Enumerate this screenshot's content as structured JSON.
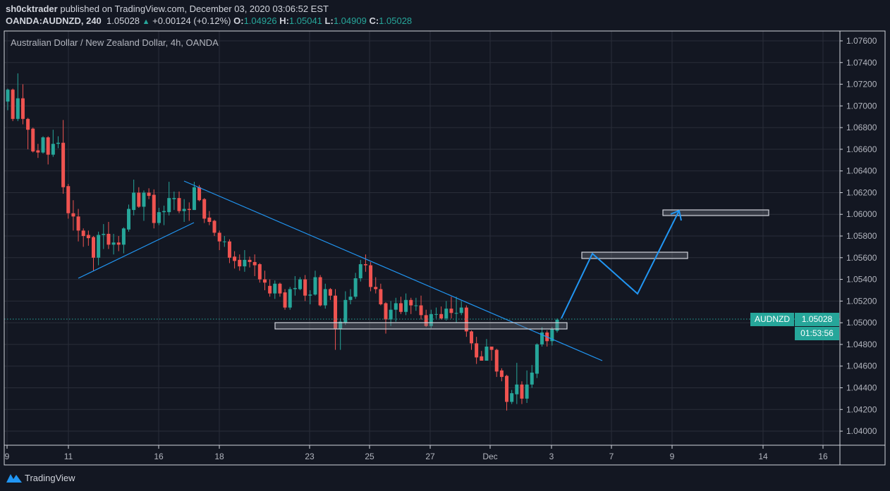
{
  "header": {
    "author": "sh0cktrader",
    "published_text": "published on TradingView.com, December 03, 2020 03:06:52 EST",
    "symbol": "OANDA:AUDNZD, 240",
    "last_price": "1.05028",
    "change": "+0.00124 (+0.12%)",
    "o_label": "O:",
    "o_value": "1.04926",
    "h_label": "H:",
    "h_value": "1.05041",
    "l_label": "L:",
    "l_value": "1.04909",
    "c_label": "C:",
    "c_value": "1.05028",
    "change_direction_icon": "triangle-up-icon"
  },
  "chart_title": "Australian Dollar / New Zealand Dollar, 4h, OANDA",
  "price_label": {
    "symbol": "AUDNZD",
    "price": "1.05028",
    "countdown": "01:53:56"
  },
  "footer": {
    "brand": "TradingView"
  },
  "colors": {
    "background": "#131722",
    "bull": "#26a69a",
    "bear": "#ef5350",
    "grid": "#2a2e39",
    "drawing": "#2196f3",
    "axis_text": "#b2b5be"
  },
  "chart_data": {
    "type": "candlestick",
    "interval": "4h",
    "ylim": [
      1.039,
      1.0775
    ],
    "grid": true,
    "y_ticks": [
      "1.07600",
      "1.07400",
      "1.07200",
      "1.07000",
      "1.06800",
      "1.06600",
      "1.06400",
      "1.06200",
      "1.06000",
      "1.05800",
      "1.05600",
      "1.05400",
      "1.05200",
      "1.05000",
      "1.04800",
      "1.04600",
      "1.04400",
      "1.04200",
      "1.04000"
    ],
    "x_ticks": [
      "9",
      "11",
      "16",
      "18",
      "23",
      "25",
      "27",
      "Dec",
      "3",
      "7",
      "9",
      "14",
      "16"
    ],
    "ohlc": [
      [
        1.0704,
        1.0716,
        1.0696,
        1.0715
      ],
      [
        1.0715,
        1.0716,
        1.0686,
        1.0688
      ],
      [
        1.0688,
        1.073,
        1.0686,
        1.0707
      ],
      [
        1.0707,
        1.072,
        1.0683,
        1.0688
      ],
      [
        1.0688,
        1.0689,
        1.066,
        1.0678
      ],
      [
        1.0679,
        1.068,
        1.0657,
        1.0658
      ],
      [
        1.0659,
        1.0665,
        1.0652,
        1.0657
      ],
      [
        1.0657,
        1.0672,
        1.0656,
        1.0671
      ],
      [
        1.0671,
        1.0672,
        1.0646,
        1.0655
      ],
      [
        1.0655,
        1.0678,
        1.0653,
        1.0665
      ],
      [
        1.0665,
        1.0672,
        1.0661,
        1.0666
      ],
      [
        1.0666,
        1.0687,
        1.0619,
        1.0625
      ],
      [
        1.0626,
        1.0628,
        1.0596,
        1.0601
      ],
      [
        1.0601,
        1.0613,
        1.0585,
        1.0598
      ],
      [
        1.0598,
        1.0605,
        1.0575,
        1.0585
      ],
      [
        1.0585,
        1.0587,
        1.057,
        1.058
      ],
      [
        1.0581,
        1.0585,
        1.0571,
        1.0578
      ],
      [
        1.0579,
        1.058,
        1.0548,
        1.056
      ],
      [
        1.056,
        1.0584,
        1.0553,
        1.0581
      ],
      [
        1.0581,
        1.0591,
        1.0568,
        1.0582
      ],
      [
        1.0582,
        1.0593,
        1.0568,
        1.0572
      ],
      [
        1.0572,
        1.0582,
        1.0563,
        1.0574
      ],
      [
        1.0574,
        1.058,
        1.0566,
        1.0572
      ],
      [
        1.0572,
        1.0588,
        1.0564,
        1.0587
      ],
      [
        1.0586,
        1.0609,
        1.0584,
        1.0605
      ],
      [
        1.0604,
        1.0632,
        1.0599,
        1.062
      ],
      [
        1.062,
        1.0625,
        1.0606,
        1.0607
      ],
      [
        1.0607,
        1.0622,
        1.0594,
        1.062
      ],
      [
        1.062,
        1.0624,
        1.0614,
        1.0617
      ],
      [
        1.0618,
        1.0623,
        1.0587,
        1.0592
      ],
      [
        1.0592,
        1.0606,
        1.059,
        1.0602
      ],
      [
        1.0602,
        1.0608,
        1.059,
        1.0603
      ],
      [
        1.0602,
        1.063,
        1.0599,
        1.0615
      ],
      [
        1.0614,
        1.0621,
        1.0604,
        1.0615
      ],
      [
        1.0615,
        1.0621,
        1.0601,
        1.0603
      ],
      [
        1.0603,
        1.0614,
        1.0593,
        1.0605
      ],
      [
        1.0605,
        1.0611,
        1.0594,
        1.0604
      ],
      [
        1.0604,
        1.063,
        1.0604,
        1.0625
      ],
      [
        1.0625,
        1.0627,
        1.0612,
        1.0613
      ],
      [
        1.0614,
        1.0615,
        1.0592,
        1.0596
      ],
      [
        1.0597,
        1.0603,
        1.059,
        1.0593
      ],
      [
        1.0594,
        1.0595,
        1.058,
        1.0583
      ],
      [
        1.0583,
        1.0585,
        1.0567,
        1.0575
      ],
      [
        1.0575,
        1.058,
        1.057,
        1.0575
      ],
      [
        1.0575,
        1.0577,
        1.0555,
        1.056
      ],
      [
        1.0561,
        1.0566,
        1.055,
        1.0557
      ],
      [
        1.0558,
        1.0563,
        1.0548,
        1.0552
      ],
      [
        1.0552,
        1.0567,
        1.0547,
        1.0558
      ],
      [
        1.0558,
        1.0561,
        1.0551,
        1.0556
      ],
      [
        1.0556,
        1.0563,
        1.0543,
        1.0553
      ],
      [
        1.0554,
        1.0555,
        1.0537,
        1.054
      ],
      [
        1.054,
        1.0548,
        1.053,
        1.0537
      ],
      [
        1.0534,
        1.054,
        1.0524,
        1.0527
      ],
      [
        1.0527,
        1.0539,
        1.0522,
        1.0536
      ],
      [
        1.0536,
        1.0537,
        1.0524,
        1.0527
      ],
      [
        1.0528,
        1.0531,
        1.0512,
        1.0514
      ],
      [
        1.0514,
        1.0533,
        1.0512,
        1.0531
      ],
      [
        1.0531,
        1.0543,
        1.0525,
        1.0532
      ],
      [
        1.0531,
        1.0542,
        1.053,
        1.054
      ],
      [
        1.054,
        1.0544,
        1.052,
        1.0525
      ],
      [
        1.0525,
        1.053,
        1.0517,
        1.0526
      ],
      [
        1.0526,
        1.0548,
        1.0525,
        1.0542
      ],
      [
        1.0542,
        1.0544,
        1.0515,
        1.0516
      ],
      [
        1.0516,
        1.0536,
        1.0513,
        1.0531
      ],
      [
        1.0531,
        1.0532,
        1.0521,
        1.0525
      ],
      [
        1.0525,
        1.0531,
        1.0475,
        1.0494
      ],
      [
        1.0494,
        1.0504,
        1.0475,
        1.0501
      ],
      [
        1.05,
        1.0529,
        1.0498,
        1.0521
      ],
      [
        1.0521,
        1.0531,
        1.0517,
        1.0524
      ],
      [
        1.0524,
        1.0546,
        1.0522,
        1.0541
      ],
      [
        1.0541,
        1.0558,
        1.0538,
        1.0554
      ],
      [
        1.0554,
        1.0563,
        1.0547,
        1.0553
      ],
      [
        1.0553,
        1.0556,
        1.0529,
        1.0533
      ],
      [
        1.0533,
        1.0542,
        1.0527,
        1.0531
      ],
      [
        1.0531,
        1.0536,
        1.0516,
        1.0517
      ],
      [
        1.0518,
        1.0519,
        1.049,
        1.0503
      ],
      [
        1.0503,
        1.052,
        1.0497,
        1.0512
      ],
      [
        1.0512,
        1.0523,
        1.0501,
        1.0518
      ],
      [
        1.0518,
        1.0524,
        1.0508,
        1.051
      ],
      [
        1.051,
        1.0527,
        1.0507,
        1.0521
      ],
      [
        1.0521,
        1.0523,
        1.0508,
        1.0516
      ],
      [
        1.0516,
        1.0523,
        1.0511,
        1.0516
      ],
      [
        1.0516,
        1.0525,
        1.0503,
        1.0507
      ],
      [
        1.0507,
        1.0512,
        1.0496,
        1.0497
      ],
      [
        1.0497,
        1.0512,
        1.0495,
        1.0508
      ],
      [
        1.0508,
        1.0514,
        1.0504,
        1.0508
      ],
      [
        1.0508,
        1.0515,
        1.0503,
        1.0504
      ],
      [
        1.0504,
        1.052,
        1.0502,
        1.0513
      ],
      [
        1.0513,
        1.0524,
        1.0504,
        1.0509
      ],
      [
        1.0509,
        1.0524,
        1.05,
        1.0509
      ],
      [
        1.0509,
        1.052,
        1.0507,
        1.0514
      ],
      [
        1.0514,
        1.0516,
        1.0487,
        1.0492
      ],
      [
        1.0492,
        1.0493,
        1.0475,
        1.0481
      ],
      [
        1.0481,
        1.0487,
        1.0462,
        1.0468
      ],
      [
        1.0469,
        1.0474,
        1.0465,
        1.0465
      ],
      [
        1.0465,
        1.0485,
        1.0465,
        1.0478
      ],
      [
        1.0478,
        1.0478,
        1.0465,
        1.0475
      ],
      [
        1.0475,
        1.0476,
        1.045,
        1.0455
      ],
      [
        1.0456,
        1.0458,
        1.0446,
        1.045
      ],
      [
        1.0451,
        1.0452,
        1.0419,
        1.0427
      ],
      [
        1.0427,
        1.0438,
        1.0425,
        1.0435
      ],
      [
        1.0434,
        1.0463,
        1.0425,
        1.0443
      ],
      [
        1.0443,
        1.0446,
        1.0425,
        1.043
      ],
      [
        1.043,
        1.0456,
        1.0426,
        1.0443
      ],
      [
        1.0443,
        1.0461,
        1.044,
        1.0454
      ],
      [
        1.0453,
        1.0481,
        1.0449,
        1.048
      ],
      [
        1.048,
        1.0496,
        1.0478,
        1.0491
      ],
      [
        1.0491,
        1.0493,
        1.0478,
        1.0483
      ],
      [
        1.0483,
        1.0496,
        1.0479,
        1.0494
      ],
      [
        1.04926,
        1.05041,
        1.04909,
        1.05028
      ]
    ]
  }
}
